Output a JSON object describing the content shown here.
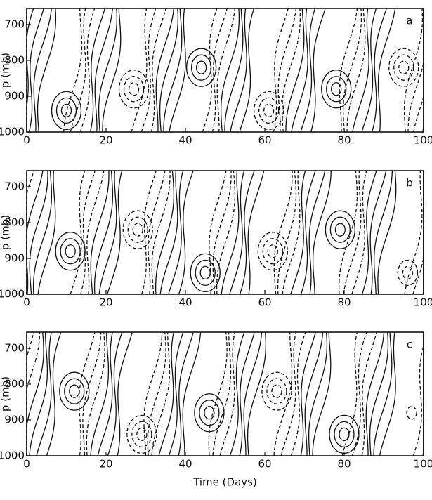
{
  "chart_data": [
    {
      "type": "contour",
      "panel_label": "a",
      "ylabel": "p (mb)",
      "xlim": [
        0,
        100
      ],
      "xticks": [
        0,
        20,
        40,
        60,
        80,
        100
      ],
      "ylim": [
        1000,
        655
      ],
      "yticks": [
        700,
        800,
        900,
        1000
      ]
    },
    {
      "type": "contour",
      "panel_label": "b",
      "ylabel": "p (mb)",
      "xlim": [
        0,
        100
      ],
      "xticks": [
        0,
        20,
        40,
        60,
        80,
        100
      ],
      "ylim": [
        1000,
        655
      ],
      "yticks": [
        700,
        800,
        900,
        1000
      ]
    },
    {
      "type": "contour",
      "panel_label": "c",
      "ylabel": "p (mb)",
      "xlabel": "Time (Days)",
      "xlim": [
        0,
        100
      ],
      "xticks": [
        0,
        20,
        40,
        60,
        80,
        100
      ],
      "ylim": [
        1000,
        655
      ],
      "yticks": [
        700,
        800,
        900,
        1000
      ]
    }
  ]
}
